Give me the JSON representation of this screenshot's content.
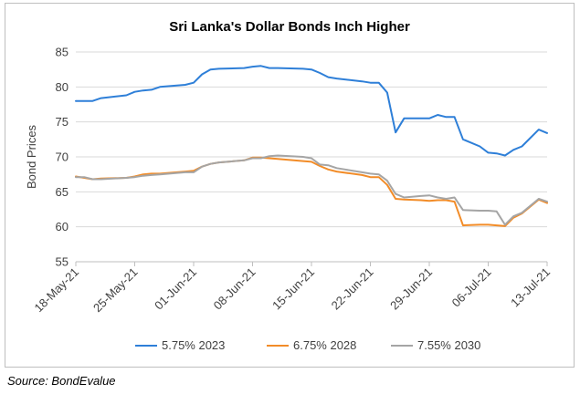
{
  "chart_data": {
    "type": "line",
    "title": "Sri Lanka's Dollar Bonds Inch Higher",
    "xlabel": "",
    "ylabel": "Bond Prices",
    "ylim": [
      55,
      85
    ],
    "yticks": [
      55,
      60,
      65,
      70,
      75,
      80,
      85
    ],
    "x_range": [
      "2021-05-18",
      "2021-07-13"
    ],
    "xticks": [
      "18-May-21",
      "25-May-21",
      "01-Jun-21",
      "08-Jun-21",
      "15-Jun-21",
      "22-Jun-21",
      "29-Jun-21",
      "06-Jul-21",
      "13-Jul-21"
    ],
    "xtick_dates": [
      "2021-05-18",
      "2021-05-25",
      "2021-06-01",
      "2021-06-08",
      "2021-06-15",
      "2021-06-22",
      "2021-06-29",
      "2021-07-06",
      "2021-07-13"
    ],
    "grid": "horizontal",
    "legend": "bottom",
    "series": [
      {
        "name": "5.75% 2023",
        "color": "#2e7fd8",
        "points": [
          [
            "2021-05-18",
            78.0
          ],
          [
            "2021-05-19",
            78.0
          ],
          [
            "2021-05-20",
            78.0
          ],
          [
            "2021-05-21",
            78.4
          ],
          [
            "2021-05-24",
            78.8
          ],
          [
            "2021-05-25",
            79.3
          ],
          [
            "2021-05-26",
            79.5
          ],
          [
            "2021-05-27",
            79.6
          ],
          [
            "2021-05-28",
            80.0
          ],
          [
            "2021-05-31",
            80.3
          ],
          [
            "2021-06-01",
            80.6
          ],
          [
            "2021-06-02",
            81.8
          ],
          [
            "2021-06-03",
            82.5
          ],
          [
            "2021-06-04",
            82.6
          ],
          [
            "2021-06-07",
            82.7
          ],
          [
            "2021-06-08",
            82.9
          ],
          [
            "2021-06-09",
            83.0
          ],
          [
            "2021-06-10",
            82.7
          ],
          [
            "2021-06-11",
            82.7
          ],
          [
            "2021-06-14",
            82.6
          ],
          [
            "2021-06-15",
            82.5
          ],
          [
            "2021-06-16",
            82.0
          ],
          [
            "2021-06-17",
            81.4
          ],
          [
            "2021-06-18",
            81.2
          ],
          [
            "2021-06-21",
            80.8
          ],
          [
            "2021-06-22",
            80.6
          ],
          [
            "2021-06-23",
            80.6
          ],
          [
            "2021-06-24",
            79.2
          ],
          [
            "2021-06-25",
            73.5
          ],
          [
            "2021-06-26",
            75.5
          ],
          [
            "2021-06-28",
            75.5
          ],
          [
            "2021-06-29",
            75.5
          ],
          [
            "2021-06-30",
            76.0
          ],
          [
            "2021-07-01",
            75.7
          ],
          [
            "2021-07-02",
            75.7
          ],
          [
            "2021-07-03",
            72.5
          ],
          [
            "2021-07-05",
            71.5
          ],
          [
            "2021-07-06",
            70.6
          ],
          [
            "2021-07-07",
            70.5
          ],
          [
            "2021-07-08",
            70.2
          ],
          [
            "2021-07-09",
            71.0
          ],
          [
            "2021-07-10",
            71.5
          ],
          [
            "2021-07-12",
            73.9
          ],
          [
            "2021-07-13",
            73.4
          ]
        ]
      },
      {
        "name": "6.75% 2028",
        "color": "#f28c28",
        "points": [
          [
            "2021-05-18",
            67.2
          ],
          [
            "2021-05-19",
            67.0
          ],
          [
            "2021-05-20",
            66.8
          ],
          [
            "2021-05-21",
            66.9
          ],
          [
            "2021-05-24",
            67.0
          ],
          [
            "2021-05-25",
            67.2
          ],
          [
            "2021-05-26",
            67.5
          ],
          [
            "2021-05-27",
            67.6
          ],
          [
            "2021-05-28",
            67.6
          ],
          [
            "2021-05-31",
            67.9
          ],
          [
            "2021-06-01",
            68.0
          ],
          [
            "2021-06-02",
            68.6
          ],
          [
            "2021-06-03",
            69.0
          ],
          [
            "2021-06-04",
            69.2
          ],
          [
            "2021-06-07",
            69.5
          ],
          [
            "2021-06-08",
            69.9
          ],
          [
            "2021-06-09",
            69.9
          ],
          [
            "2021-06-10",
            69.8
          ],
          [
            "2021-06-11",
            69.7
          ],
          [
            "2021-06-14",
            69.4
          ],
          [
            "2021-06-15",
            69.3
          ],
          [
            "2021-06-16",
            68.7
          ],
          [
            "2021-06-17",
            68.2
          ],
          [
            "2021-06-18",
            67.9
          ],
          [
            "2021-06-21",
            67.4
          ],
          [
            "2021-06-22",
            67.1
          ],
          [
            "2021-06-23",
            67.1
          ],
          [
            "2021-06-24",
            66.0
          ],
          [
            "2021-06-25",
            64.0
          ],
          [
            "2021-06-26",
            63.9
          ],
          [
            "2021-06-28",
            63.8
          ],
          [
            "2021-06-29",
            63.7
          ],
          [
            "2021-06-30",
            63.8
          ],
          [
            "2021-07-01",
            63.8
          ],
          [
            "2021-07-02",
            63.6
          ],
          [
            "2021-07-03",
            60.2
          ],
          [
            "2021-07-05",
            60.3
          ],
          [
            "2021-07-06",
            60.3
          ],
          [
            "2021-07-07",
            60.2
          ],
          [
            "2021-07-08",
            60.1
          ],
          [
            "2021-07-09",
            61.3
          ],
          [
            "2021-07-10",
            61.9
          ],
          [
            "2021-07-12",
            63.9
          ],
          [
            "2021-07-13",
            63.4
          ]
        ]
      },
      {
        "name": "7.55% 2030",
        "color": "#a5a5a5",
        "points": [
          [
            "2021-05-18",
            67.1
          ],
          [
            "2021-05-19",
            67.1
          ],
          [
            "2021-05-20",
            66.8
          ],
          [
            "2021-05-21",
            66.8
          ],
          [
            "2021-05-24",
            67.0
          ],
          [
            "2021-05-25",
            67.1
          ],
          [
            "2021-05-26",
            67.3
          ],
          [
            "2021-05-27",
            67.4
          ],
          [
            "2021-05-28",
            67.5
          ],
          [
            "2021-05-31",
            67.8
          ],
          [
            "2021-06-01",
            67.8
          ],
          [
            "2021-06-02",
            68.6
          ],
          [
            "2021-06-03",
            69.0
          ],
          [
            "2021-06-04",
            69.2
          ],
          [
            "2021-06-07",
            69.5
          ],
          [
            "2021-06-08",
            69.8
          ],
          [
            "2021-06-09",
            69.8
          ],
          [
            "2021-06-10",
            70.1
          ],
          [
            "2021-06-11",
            70.2
          ],
          [
            "2021-06-14",
            70.0
          ],
          [
            "2021-06-15",
            69.8
          ],
          [
            "2021-06-16",
            68.9
          ],
          [
            "2021-06-17",
            68.8
          ],
          [
            "2021-06-18",
            68.4
          ],
          [
            "2021-06-21",
            67.8
          ],
          [
            "2021-06-22",
            67.6
          ],
          [
            "2021-06-23",
            67.5
          ],
          [
            "2021-06-24",
            66.6
          ],
          [
            "2021-06-25",
            64.7
          ],
          [
            "2021-06-26",
            64.2
          ],
          [
            "2021-06-28",
            64.4
          ],
          [
            "2021-06-29",
            64.5
          ],
          [
            "2021-06-30",
            64.2
          ],
          [
            "2021-07-01",
            64.0
          ],
          [
            "2021-07-02",
            64.2
          ],
          [
            "2021-07-03",
            62.4
          ],
          [
            "2021-07-05",
            62.3
          ],
          [
            "2021-07-06",
            62.3
          ],
          [
            "2021-07-07",
            62.2
          ],
          [
            "2021-07-08",
            60.3
          ],
          [
            "2021-07-09",
            61.5
          ],
          [
            "2021-07-10",
            62.0
          ],
          [
            "2021-07-12",
            64.0
          ],
          [
            "2021-07-13",
            63.6
          ]
        ]
      }
    ]
  },
  "source": "Source: BondEvalue"
}
